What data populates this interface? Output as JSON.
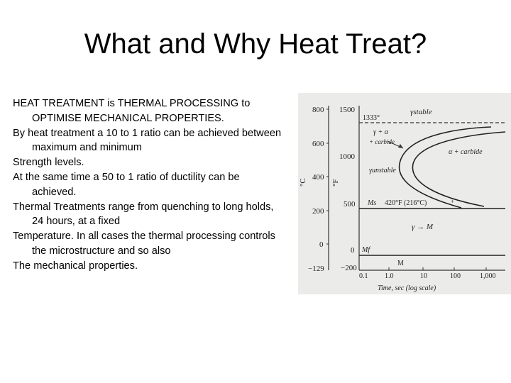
{
  "slide": {
    "title": "What and Why Heat Treat?",
    "paragraphs": [
      "HEAT TREATMENT is THERMAL PROCESSING to OPTIMISE MECHANICAL PROPERTIES.",
      "By heat treatment a 10 to 1 ratio can be achieved between maximum and minimum",
      "Strength levels.",
      "At the same time a 50 to 1 ratio of ductility can be achieved.",
      "Thermal Treatments range from quenching to long holds, 24 hours, at a fixed",
      "Temperature. In all cases the thermal processing controls the microstructure and so also",
      "The mechanical properties."
    ]
  },
  "diagram": {
    "axis_c_label": "°C",
    "axis_f_label": "°F",
    "celsius_ticks": [
      "800",
      "600",
      "400",
      "200",
      "0",
      "−129"
    ],
    "fahrenheit_ticks": [
      "1500",
      "1000",
      "500",
      "0",
      "−200"
    ],
    "time_ticks": [
      "0.1",
      "1.0",
      "10",
      "100",
      "1,000"
    ],
    "x_axis_label": "Time, sec (log scale)",
    "labels": {
      "eutectoid": "1333°",
      "gamma_stable": "γstable",
      "gamma_alpha": "γ + α",
      "carbide": "+ carbide",
      "alpha_carbide": "α + carbide",
      "gamma_unstable": "γunstable",
      "ms": "Ms",
      "ms_temp": "420°F (216°C)",
      "gamma_m": "γ → M",
      "mf": "Mf",
      "m": "M"
    }
  }
}
